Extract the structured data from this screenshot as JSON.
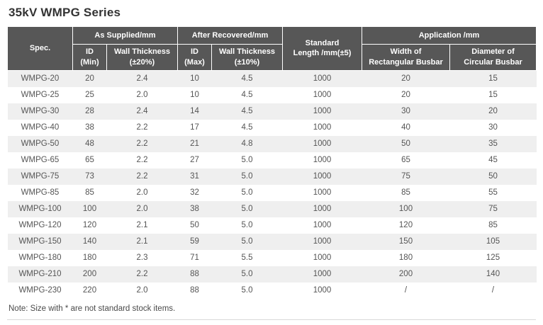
{
  "page": {
    "title": "35kV WMPG Series",
    "note": "Note: Size with * are not standard stock items."
  },
  "table": {
    "headers": {
      "spec": "Spec.",
      "as_supplied": "As Supplied/mm",
      "after_recovered": "After Recovered/mm",
      "standard_length": "Standard\nLength /mm(±5)",
      "application": "Application /mm",
      "id_min": "ID\n(Min)",
      "wall_thickness_20": "Wall Thickness\n(±20%)",
      "id_max": "ID\n(Max)",
      "wall_thickness_10": "Wall Thickness\n(±10%)",
      "width_rectangular": "Width of\nRectangular Busbar",
      "diameter_circular": "Diameter of\nCircular Busbar"
    },
    "rows": [
      [
        "WMPG-20",
        "20",
        "2.4",
        "10",
        "4.5",
        "1000",
        "20",
        "15"
      ],
      [
        "WMPG-25",
        "25",
        "2.0",
        "10",
        "4.5",
        "1000",
        "20",
        "15"
      ],
      [
        "WMPG-30",
        "28",
        "2.4",
        "14",
        "4.5",
        "1000",
        "30",
        "20"
      ],
      [
        "WMPG-40",
        "38",
        "2.2",
        "17",
        "4.5",
        "1000",
        "40",
        "30"
      ],
      [
        "WMPG-50",
        "48",
        "2.2",
        "21",
        "4.8",
        "1000",
        "50",
        "35"
      ],
      [
        "WMPG-65",
        "65",
        "2.2",
        "27",
        "5.0",
        "1000",
        "65",
        "45"
      ],
      [
        "WMPG-75",
        "73",
        "2.2",
        "31",
        "5.0",
        "1000",
        "75",
        "50"
      ],
      [
        "WMPG-85",
        "85",
        "2.0",
        "32",
        "5.0",
        "1000",
        "85",
        "55"
      ],
      [
        "WMPG-100",
        "100",
        "2.0",
        "38",
        "5.0",
        "1000",
        "100",
        "75"
      ],
      [
        "WMPG-120",
        "120",
        "2.1",
        "50",
        "5.0",
        "1000",
        "120",
        "85"
      ],
      [
        "WMPG-150",
        "140",
        "2.1",
        "59",
        "5.0",
        "1000",
        "150",
        "105"
      ],
      [
        "WMPG-180",
        "180",
        "2.3",
        "71",
        "5.5",
        "1000",
        "180",
        "125"
      ],
      [
        "WMPG-210",
        "200",
        "2.2",
        "88",
        "5.0",
        "1000",
        "200",
        "140"
      ],
      [
        "WMPG-230",
        "220",
        "2.0",
        "88",
        "5.0",
        "1000",
        "/",
        "/"
      ]
    ]
  },
  "colors": {
    "header_bg": "#575757",
    "zebra_gray": "#efefef",
    "title_text": "#333333",
    "body_text": "#555555"
  }
}
